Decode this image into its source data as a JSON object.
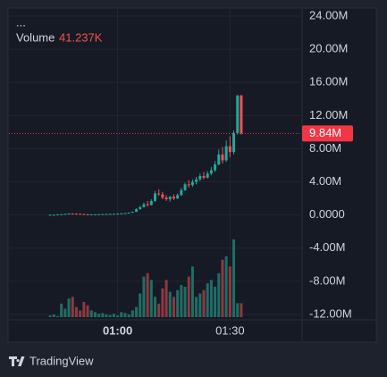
{
  "chart_data": {
    "type": "candlestick",
    "menu": "...",
    "volume_title": "Volume",
    "volume_value_label": "41.237K",
    "last_label": "9.84M",
    "brand": "TradingView",
    "x": [
      "00:42",
      "00:43",
      "00:44",
      "00:45",
      "00:46",
      "00:47",
      "00:48",
      "00:49",
      "00:50",
      "00:51",
      "00:52",
      "00:53",
      "00:54",
      "00:55",
      "00:56",
      "00:57",
      "00:58",
      "00:59",
      "01:00",
      "01:01",
      "01:02",
      "01:03",
      "01:04",
      "01:05",
      "01:06",
      "01:07",
      "01:08",
      "01:09",
      "01:10",
      "01:11",
      "01:12",
      "01:13",
      "01:14",
      "01:15",
      "01:16",
      "01:17",
      "01:18",
      "01:19",
      "01:20",
      "01:21",
      "01:22",
      "01:23",
      "01:24",
      "01:25",
      "01:26",
      "01:27",
      "01:28",
      "01:29",
      "01:30",
      "01:31",
      "01:32",
      "01:33"
    ],
    "open": [
      0,
      30000,
      40000,
      70000,
      100000,
      140000,
      180000,
      160000,
      150000,
      120000,
      80000,
      60000,
      70000,
      80000,
      100000,
      110000,
      120000,
      130000,
      140000,
      170000,
      200000,
      240000,
      290000,
      380000,
      700000,
      950000,
      1300000,
      1200000,
      1700000,
      2600000,
      2500000,
      2100000,
      1900000,
      2200000,
      2000000,
      2400000,
      3000000,
      3700000,
      3600000,
      4000000,
      4300000,
      4700000,
      4500000,
      5000000,
      5400000,
      6100000,
      7300000,
      6600000,
      8300000,
      7600000,
      9900000,
      14400000
    ],
    "high": [
      50000,
      60000,
      80000,
      120000,
      160000,
      200000,
      220000,
      190000,
      170000,
      140000,
      110000,
      90000,
      100000,
      120000,
      130000,
      140000,
      150000,
      160000,
      190000,
      220000,
      260000,
      320000,
      420000,
      800000,
      1100000,
      1500000,
      1700000,
      1900000,
      2900000,
      3100000,
      2800000,
      2400000,
      2300000,
      2500000,
      2600000,
      3300000,
      3900000,
      4200000,
      4300000,
      4600000,
      5000000,
      5200000,
      5300000,
      5800000,
      6500000,
      7900000,
      8200000,
      9000000,
      9500000,
      10200000,
      14500000,
      14500000
    ],
    "low": [
      0,
      20000,
      30000,
      60000,
      90000,
      120000,
      150000,
      130000,
      100000,
      60000,
      50000,
      40000,
      50000,
      60000,
      80000,
      90000,
      100000,
      110000,
      120000,
      150000,
      180000,
      220000,
      270000,
      360000,
      650000,
      900000,
      1000000,
      1150000,
      1600000,
      2300000,
      1900000,
      1700000,
      1600000,
      1800000,
      1900000,
      2300000,
      2900000,
      3300000,
      3400000,
      3700000,
      4100000,
      4300000,
      4400000,
      4800000,
      5200000,
      6000000,
      6200000,
      6400000,
      7000000,
      7300000,
      9700000,
      9700000
    ],
    "close": [
      30000,
      40000,
      70000,
      100000,
      140000,
      180000,
      160000,
      150000,
      120000,
      80000,
      60000,
      70000,
      80000,
      100000,
      110000,
      120000,
      130000,
      140000,
      170000,
      200000,
      240000,
      290000,
      380000,
      700000,
      950000,
      1300000,
      1200000,
      1700000,
      2600000,
      2500000,
      2100000,
      1900000,
      2200000,
      2000000,
      2400000,
      3000000,
      3700000,
      3600000,
      4000000,
      4300000,
      4700000,
      4500000,
      5000000,
      5400000,
      6100000,
      7300000,
      6600000,
      8300000,
      7600000,
      9900000,
      14400000,
      9840000
    ],
    "volume": [
      5000,
      8000,
      3000,
      40000,
      25000,
      55000,
      60000,
      30000,
      20000,
      45000,
      35000,
      20000,
      15000,
      10000,
      12000,
      8000,
      6000,
      10000,
      5000,
      15000,
      12000,
      8000,
      20000,
      30000,
      70000,
      120000,
      130000,
      110000,
      60000,
      40000,
      85000,
      110000,
      75000,
      60000,
      80000,
      95000,
      90000,
      120000,
      150000,
      60000,
      70000,
      80000,
      100000,
      110000,
      90000,
      130000,
      170000,
      180000,
      150000,
      230000,
      41237,
      41237
    ],
    "up_color": "#26a69a",
    "down_color": "#ef5350",
    "up_volume_color": "#1f6e66",
    "down_volume_color": "#8c3a3f",
    "last_color": "#f23645",
    "xlim": [
      "00:31",
      "01:49"
    ],
    "xticks": [
      "01:00",
      "01:30"
    ],
    "ylim": [
      -12000000,
      24000000
    ],
    "yticks": [
      {
        "value": 24000000,
        "label": "24.00M"
      },
      {
        "value": 20000000,
        "label": "20.00M"
      },
      {
        "value": 16000000,
        "label": "16.00M"
      },
      {
        "value": 12000000,
        "label": "12.00M"
      },
      {
        "value": 8000000,
        "label": "8.00M"
      },
      {
        "value": 4000000,
        "label": "4.00M"
      },
      {
        "value": 0,
        "label": "0.0000"
      },
      {
        "value": -4000000,
        "label": "-4.00M"
      },
      {
        "value": -8000000,
        "label": "-8.00M"
      },
      {
        "value": -12000000,
        "label": "-12.00M"
      }
    ],
    "grid": true
  }
}
